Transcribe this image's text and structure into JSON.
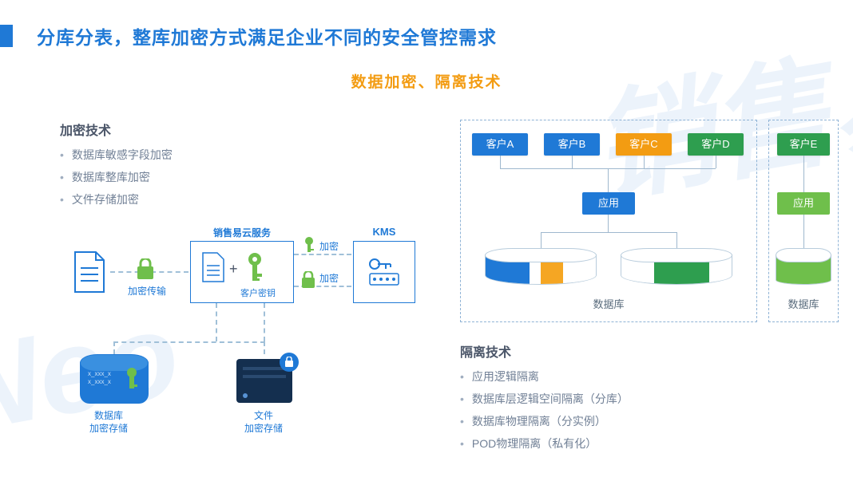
{
  "title": "分库分表，整库加密方式满足企业不同的安全管控需求",
  "subtitle": "数据加密、隔离技术",
  "colors": {
    "primary_blue": "#1f79d6",
    "dark_navy": "#142f4f",
    "orange": "#f39c12",
    "green": "#6fbf4b",
    "dark_green": "#2e9e4f",
    "gray_text": "#718096",
    "heading_text": "#4a5568",
    "line_gray": "#9fb8ce",
    "dash_border": "#8fb3d6"
  },
  "watermark_segments": [
    "Neo",
    "销售易"
  ],
  "encryption": {
    "heading": "加密技术",
    "bullets": [
      "数据库敏感字段加密",
      "数据库整库加密",
      "文件存储加密"
    ],
    "labels": {
      "transmit": "加密传输",
      "cloud_service": "销售易云服务",
      "customer_key": "客户密钥",
      "encrypt": "加密",
      "encrypt2": "加密",
      "kms": "KMS",
      "db_line1": "数据库",
      "db_line2": "加密存储",
      "file_line1": "文件",
      "file_line2": "加密存储"
    }
  },
  "isolation": {
    "heading": "隔离技术",
    "bullets": [
      "应用逻辑隔离",
      "数据库层逻辑空间隔离（分库）",
      "数据库物理隔离（分实例）",
      "POD物理隔离（私有化）"
    ],
    "customers": [
      {
        "label": "客户A",
        "color": "#1f79d6"
      },
      {
        "label": "客户B",
        "color": "#1f79d6"
      },
      {
        "label": "客户C",
        "color": "#f39c12"
      },
      {
        "label": "客户D",
        "color": "#2e9e4f"
      },
      {
        "label": "客户E",
        "color": "#2e9e4f"
      }
    ],
    "app_label": "应用",
    "app_color_main": "#1f79d6",
    "app_color_iso": "#6fbf4b",
    "db_caption": "数据库",
    "db1_segments": [
      {
        "color": "#1f79d6",
        "width_pct": 40
      },
      {
        "color": "#ffffff",
        "width_pct": 10
      },
      {
        "color": "#f5a623",
        "width_pct": 20
      },
      {
        "color": "#ffffff",
        "width_pct": 30
      }
    ],
    "db2_segments": [
      {
        "color": "#ffffff",
        "width_pct": 30
      },
      {
        "color": "#2e9e4f",
        "width_pct": 50
      },
      {
        "color": "#ffffff",
        "width_pct": 20
      }
    ],
    "db3_segments": [
      {
        "color": "#6fbf4b",
        "width_pct": 100
      }
    ]
  }
}
